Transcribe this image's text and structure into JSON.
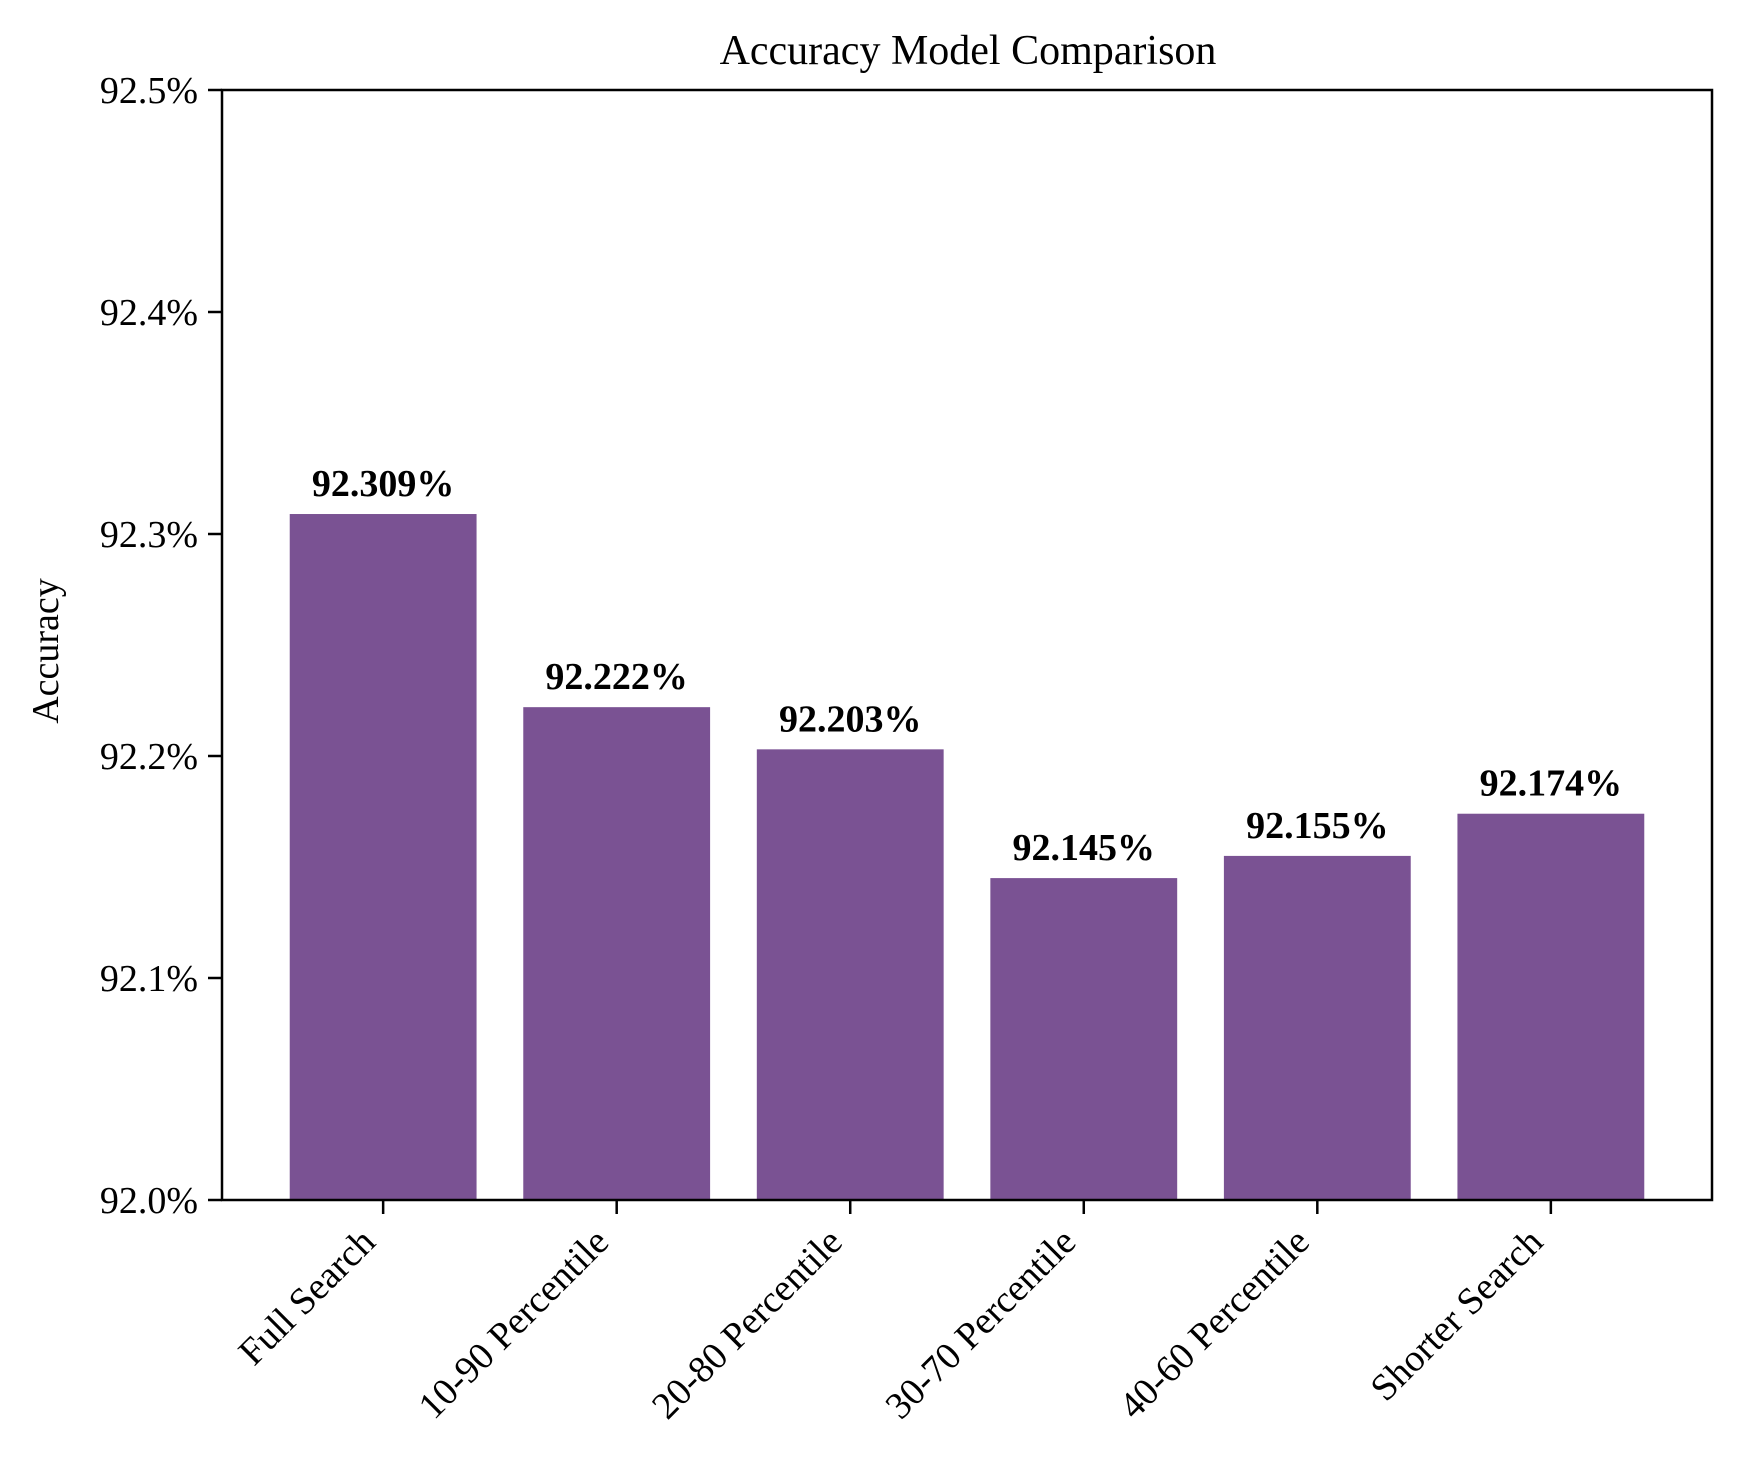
{
  "chart_data": {
    "type": "bar",
    "title": "Accuracy Model Comparison",
    "xlabel": "",
    "ylabel": "Accuracy",
    "categories": [
      "Full Search",
      "10-90 Percentile",
      "20-80 Percentile",
      "30-70 Percentile",
      "40-60 Percentile",
      "Shorter Search"
    ],
    "values": [
      92.309,
      92.222,
      92.203,
      92.145,
      92.155,
      92.174
    ],
    "data_labels": [
      "92.309%",
      "92.222%",
      "92.203%",
      "92.145%",
      "92.155%",
      "92.174%"
    ],
    "ylim": [
      92.0,
      92.5
    ],
    "yticks": [
      92.0,
      92.1,
      92.2,
      92.3,
      92.4,
      92.5
    ],
    "ytick_labels": [
      "92.0%",
      "92.1%",
      "92.2%",
      "92.3%",
      "92.4%",
      "92.5%"
    ],
    "bar_color": "#7a5293",
    "grid": false,
    "legend": "none"
  }
}
